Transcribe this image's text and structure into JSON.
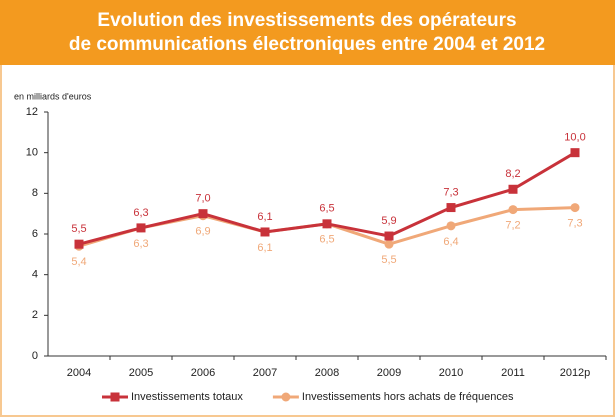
{
  "chart_data": {
    "type": "line",
    "title": [
      "Evolution des investissements des opérateurs",
      "de communications électroniques entre 2004 et 2012"
    ],
    "y_label": "en milliards d'euros",
    "categories": [
      "2004",
      "2005",
      "2006",
      "2007",
      "2008",
      "2009",
      "2010",
      "2011",
      "2012p"
    ],
    "series": [
      {
        "name": "Investissements totaux",
        "color": "#c8323a",
        "marker": "square",
        "values": [
          5.5,
          6.3,
          7.0,
          6.1,
          6.5,
          5.9,
          7.3,
          8.2,
          10.0
        ],
        "value_labels": [
          "5,5",
          "6,3",
          "7,0",
          "6,1",
          "6,5",
          "5,9",
          "7,3",
          "8,2",
          "10,0"
        ]
      },
      {
        "name": "Investissements hors achats de fréquences",
        "color": "#f0a878",
        "marker": "circle",
        "values": [
          5.4,
          6.3,
          6.9,
          6.1,
          6.5,
          5.5,
          6.4,
          7.2,
          7.3
        ],
        "value_labels": [
          "5,4",
          "6,3",
          "6,9",
          "6,1",
          "6,5",
          "5,5",
          "6,4",
          "7,2",
          "7,3"
        ]
      }
    ],
    "ylim": [
      0,
      12
    ],
    "yticks": [
      0,
      2,
      4,
      6,
      8,
      10,
      12
    ],
    "grid": false,
    "legend": "bottom"
  }
}
